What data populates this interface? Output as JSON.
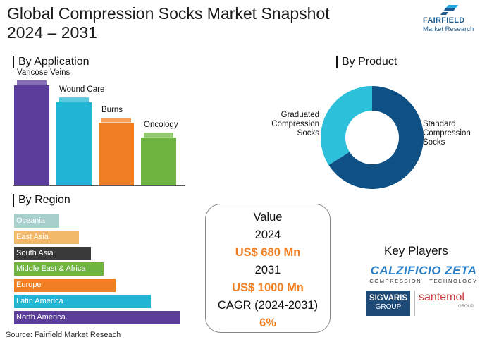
{
  "title_line1": "Global Compression Socks Market Snapshot",
  "title_line2": "2024 – 2031",
  "logo": {
    "brand": "FAIRFIELD",
    "sub": "Market Research"
  },
  "sections": {
    "application": "By Application",
    "product": "By Product",
    "region": "By Region"
  },
  "chart_data": [
    {
      "type": "bar",
      "categories": [
        "Varicose Veins",
        "Wound Care",
        "Burns",
        "Oncology"
      ],
      "values": [
        100,
        83,
        63,
        48
      ],
      "colors": [
        "#5b3d9c",
        "#22b6d6",
        "#f07f23",
        "#6fb440"
      ],
      "title": "By Application"
    },
    {
      "type": "pie",
      "categories": [
        "Standard Compression Socks",
        "Graduated Compression Socks"
      ],
      "values": [
        66,
        34
      ],
      "colors": [
        "#0f5185",
        "#2cc0da"
      ],
      "donut": true,
      "title": "By Product"
    },
    {
      "type": "bar",
      "orientation": "horizontal",
      "categories": [
        "Oceania",
        "East Asia",
        "South Asia",
        "Middle East & Africa",
        "Europe",
        "Latin America",
        "North America"
      ],
      "values": [
        27,
        39,
        46,
        54,
        61,
        82,
        100
      ],
      "colors": [
        "#a7cfcc",
        "#f3b96a",
        "#3a3a3a",
        "#6fb440",
        "#f07f23",
        "#22b6d6",
        "#5b3d9c"
      ],
      "title": "By Region"
    }
  ],
  "value_box": {
    "heading": "Value",
    "year1": "2024",
    "value1": "US$ 680 Mn",
    "year2": "2031",
    "value2": "US$ 1000 Mn",
    "cagr_label": "CAGR (2024-2031)",
    "cagr_value": "6%"
  },
  "key_players": {
    "title": "Key Players",
    "calzificio": "CALZIFICIO ZETA",
    "calzificio_sub": "COMPRESSION   TECHNOLOGY",
    "sigvaris_line1": "SIGVARIS",
    "sigvaris_line2": "GROUP",
    "santemol": "santemol",
    "santemol_sub": "GROUP"
  },
  "source": "Source: Fairfield Market Reseach"
}
